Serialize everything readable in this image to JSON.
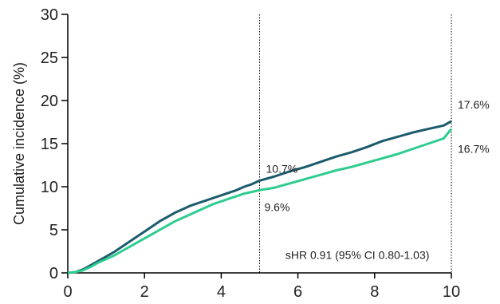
{
  "chart_data": {
    "type": "line",
    "title": "",
    "xlabel": "",
    "ylabel": "Cumulative incidence (%)",
    "xlim": [
      0,
      10
    ],
    "ylim": [
      0,
      30
    ],
    "x_ticks": [
      0,
      2,
      4,
      6,
      8,
      10
    ],
    "y_ticks": [
      0,
      5,
      10,
      15,
      20,
      25,
      30
    ],
    "grid": false,
    "reference_lines_x": [
      5,
      10
    ],
    "colors": {
      "dark": "#1b5b6b",
      "light": "#2ecc8f"
    },
    "series": [
      {
        "color_key": "dark",
        "x": [
          0,
          0.2,
          0.4,
          0.6,
          0.8,
          1.0,
          1.2,
          1.4,
          1.6,
          1.8,
          2.0,
          2.2,
          2.4,
          2.6,
          2.8,
          3.0,
          3.2,
          3.4,
          3.6,
          3.8,
          4.0,
          4.2,
          4.4,
          4.6,
          4.8,
          5.0,
          5.4,
          5.8,
          6.2,
          6.6,
          7.0,
          7.4,
          7.8,
          8.2,
          8.6,
          9.0,
          9.4,
          9.8,
          10.0
        ],
        "y": [
          0,
          0.1,
          0.4,
          0.9,
          1.4,
          1.9,
          2.4,
          3.0,
          3.6,
          4.2,
          4.8,
          5.4,
          6.0,
          6.5,
          7.0,
          7.4,
          7.8,
          8.1,
          8.4,
          8.7,
          9.0,
          9.3,
          9.6,
          10.0,
          10.3,
          10.7,
          11.2,
          11.8,
          12.3,
          12.9,
          13.5,
          14.0,
          14.6,
          15.3,
          15.8,
          16.3,
          16.7,
          17.1,
          17.6
        ]
      },
      {
        "color_key": "light",
        "x": [
          0,
          0.2,
          0.4,
          0.6,
          0.8,
          1.0,
          1.2,
          1.4,
          1.6,
          1.8,
          2.0,
          2.2,
          2.4,
          2.6,
          2.8,
          3.0,
          3.2,
          3.4,
          3.6,
          3.8,
          4.0,
          4.2,
          4.4,
          4.6,
          4.8,
          5.0,
          5.4,
          5.8,
          6.2,
          6.6,
          7.0,
          7.4,
          7.8,
          8.2,
          8.6,
          9.0,
          9.4,
          9.8,
          10.0
        ],
        "y": [
          0,
          0.1,
          0.3,
          0.7,
          1.2,
          1.6,
          2.0,
          2.5,
          3.0,
          3.5,
          4.0,
          4.5,
          5.0,
          5.5,
          6.0,
          6.4,
          6.8,
          7.2,
          7.6,
          8.0,
          8.3,
          8.6,
          8.9,
          9.2,
          9.4,
          9.6,
          9.9,
          10.4,
          10.9,
          11.4,
          11.9,
          12.3,
          12.8,
          13.3,
          13.8,
          14.4,
          15.0,
          15.6,
          16.7
        ]
      }
    ],
    "annotations": [
      {
        "text": "10.7%",
        "x": 5,
        "y": 10.7,
        "anchor": "above-right"
      },
      {
        "text": "9.6%",
        "x": 5,
        "y": 9.6,
        "anchor": "below-right"
      },
      {
        "text": "17.6%",
        "x": 10,
        "y": 17.6,
        "anchor": "right-above"
      },
      {
        "text": "16.7%",
        "x": 10,
        "y": 16.7,
        "anchor": "right-below"
      },
      {
        "text": "sHR 0.91 (95% CI 0.80-1.03)",
        "x": 7.55,
        "y": 2.1,
        "anchor": "center"
      }
    ]
  }
}
